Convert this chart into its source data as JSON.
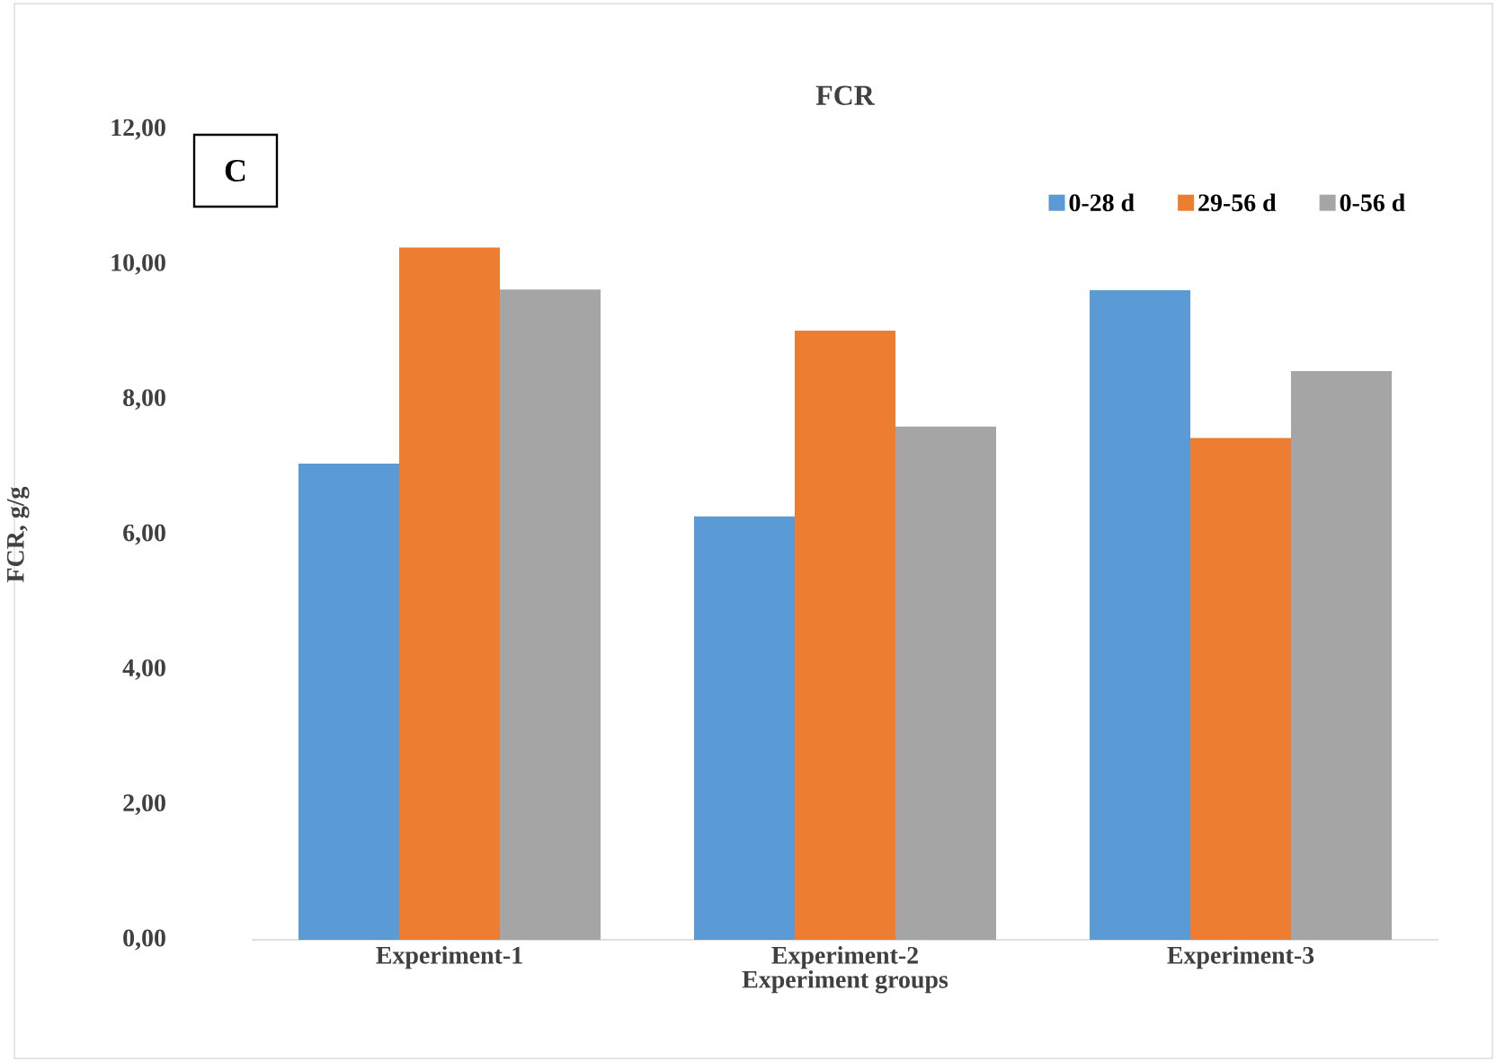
{
  "chart_data": {
    "type": "bar",
    "title": "FCR",
    "xlabel": "Experiment groups",
    "ylabel": "FCR, g/g",
    "annotations": [
      "C"
    ],
    "categories": [
      "Experiment-1",
      "Experiment-2",
      "Experiment-3"
    ],
    "series": [
      {
        "name": "0-28 d",
        "color": "#5b9bd5",
        "values": [
          7.05,
          6.27,
          9.62
        ]
      },
      {
        "name": "29-56 d",
        "color": "#ed7d31",
        "values": [
          10.25,
          9.02,
          7.43
        ]
      },
      {
        "name": "0-56 d",
        "color": "#a5a5a5",
        "values": [
          9.63,
          7.6,
          8.42
        ]
      }
    ],
    "ylim": [
      0,
      12
    ],
    "yticks": [
      {
        "value": 0,
        "label": "0,00"
      },
      {
        "value": 2,
        "label": "2,00"
      },
      {
        "value": 4,
        "label": "4,00"
      },
      {
        "value": 6,
        "label": "6,00"
      },
      {
        "value": 8,
        "label": "8,00"
      },
      {
        "value": 10,
        "label": "10,00"
      },
      {
        "value": 12,
        "label": "12,00"
      }
    ],
    "legend": "top right"
  }
}
